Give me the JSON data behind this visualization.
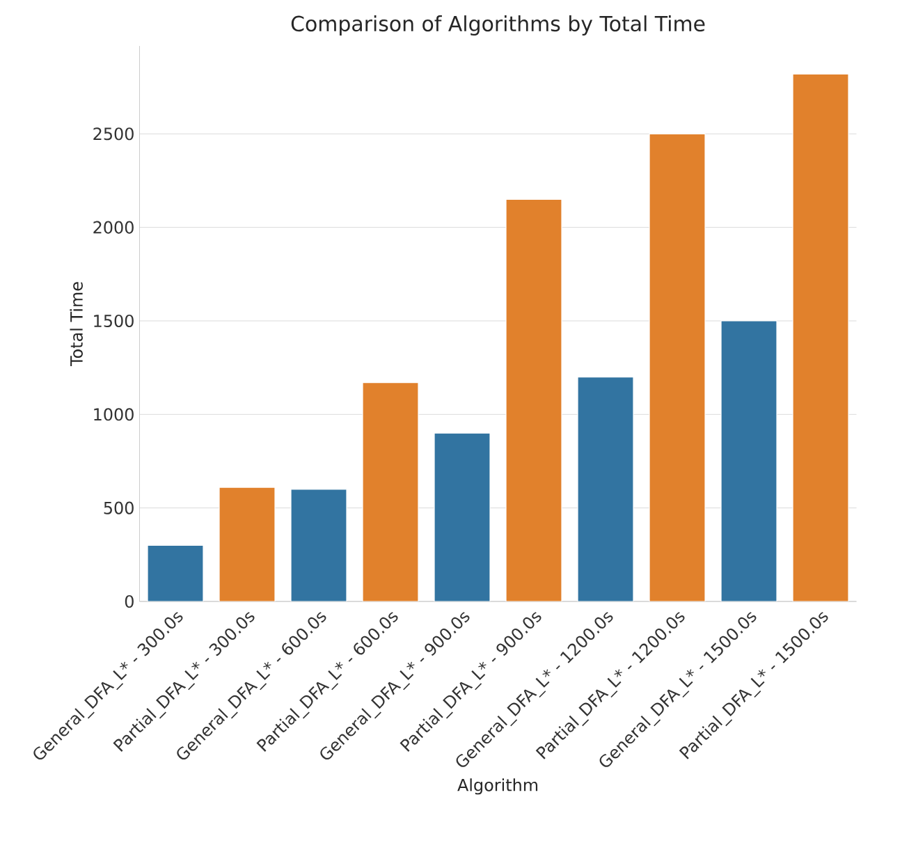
{
  "chart_data": {
    "type": "bar",
    "title": "Comparison of Algorithms by Total Time",
    "xlabel": "Algorithm",
    "ylabel": "Total Time",
    "categories": [
      "General_DFA_L* - 300.0s",
      "Partial_DFA_L* - 300.0s",
      "General_DFA_L* - 600.0s",
      "Partial_DFA_L* - 600.0s",
      "General_DFA_L* - 900.0s",
      "Partial_DFA_L* - 900.0s",
      "General_DFA_L* - 1200.0s",
      "Partial_DFA_L* - 1200.0s",
      "General_DFA_L* - 1500.0s",
      "Partial_DFA_L* - 1500.0s"
    ],
    "values": [
      300,
      610,
      600,
      1170,
      900,
      2150,
      1200,
      2500,
      1500,
      2820
    ],
    "colors": [
      "#3274a1",
      "#e1812c",
      "#3274a1",
      "#e1812c",
      "#3274a1",
      "#e1812c",
      "#3274a1",
      "#e1812c",
      "#3274a1",
      "#e1812c"
    ],
    "ylim": [
      0,
      2970
    ],
    "yticks": [
      0,
      500,
      1000,
      1500,
      2000,
      2500
    ],
    "grid": "y"
  }
}
